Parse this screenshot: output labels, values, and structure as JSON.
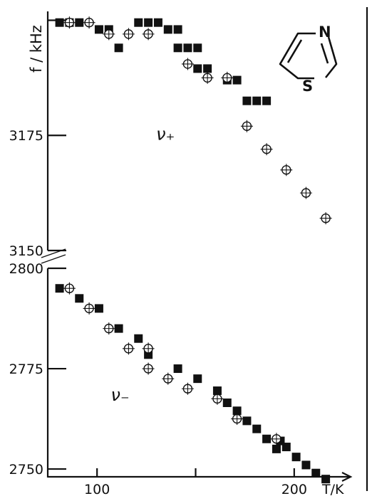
{
  "chart_data": {
    "type": "scatter",
    "ylabel": "f / kHz",
    "xlabel": "T/K",
    "x_ticks": [
      100,
      200
    ],
    "xlim": [
      75,
      225
    ],
    "y_upper": {
      "ylim": [
        3150,
        3201
      ],
      "ticks": [
        3150,
        3175,
        3200
      ],
      "tick_labels": [
        "3150",
        "3175",
        ""
      ]
    },
    "y_lower": {
      "ylim": [
        2747,
        2800
      ],
      "ticks": [
        2750,
        2775,
        2800
      ],
      "tick_labels": [
        "2750",
        "2775",
        "2800"
      ]
    },
    "axis_break": true,
    "molecule_labels": {
      "n": "N",
      "s": "S"
    },
    "annotations": [
      {
        "text": "ν₊",
        "x": 130,
        "y": 3174,
        "panel": "upper"
      },
      {
        "text": "ν₋",
        "x": 107,
        "y": 2767,
        "panel": "lower"
      }
    ],
    "series": [
      {
        "branch": "ν+",
        "marker": "filled-square",
        "points": [
          [
            81,
            3199.5
          ],
          [
            86,
            3199.5
          ],
          [
            91,
            3199.5
          ],
          [
            101,
            3198
          ],
          [
            106,
            3198
          ],
          [
            111,
            3194
          ],
          [
            121,
            3199.5
          ],
          [
            126,
            3199.5
          ],
          [
            131,
            3199.5
          ],
          [
            136,
            3198
          ],
          [
            141,
            3198
          ],
          [
            141,
            3194
          ],
          [
            146,
            3194
          ],
          [
            151,
            3194
          ],
          [
            151,
            3189.5
          ],
          [
            156,
            3189.5
          ],
          [
            166,
            3187
          ],
          [
            171,
            3187
          ],
          [
            176,
            3182.5
          ],
          [
            181,
            3182.5
          ],
          [
            186,
            3182.5
          ]
        ]
      },
      {
        "branch": "ν+",
        "marker": "open-crossed-circle",
        "points": [
          [
            86,
            3199.5
          ],
          [
            96,
            3199.5
          ],
          [
            106,
            3197
          ],
          [
            116,
            3197
          ],
          [
            126,
            3197
          ],
          [
            146,
            3190.5
          ],
          [
            156,
            3187.5
          ],
          [
            166,
            3187.5
          ],
          [
            176,
            3177
          ],
          [
            186,
            3172
          ],
          [
            196,
            3167.5
          ],
          [
            206,
            3162.5
          ],
          [
            216,
            3157
          ]
        ]
      },
      {
        "branch": "ν−",
        "marker": "filled-square",
        "points": [
          [
            81,
            2795
          ],
          [
            91,
            2792.5
          ],
          [
            101,
            2790
          ],
          [
            111,
            2785
          ],
          [
            121,
            2782.5
          ],
          [
            126,
            2778.5
          ],
          [
            141,
            2775
          ],
          [
            151,
            2772.5
          ],
          [
            161,
            2769.5
          ],
          [
            166,
            2766.5
          ],
          [
            171,
            2764.5
          ],
          [
            176,
            2762
          ],
          [
            181,
            2760
          ],
          [
            186,
            2757.5
          ],
          [
            191,
            2755
          ],
          [
            193,
            2757
          ],
          [
            196,
            2755.5
          ],
          [
            201,
            2753
          ],
          [
            206,
            2751
          ],
          [
            211,
            2749
          ],
          [
            216,
            2747.5
          ]
        ]
      },
      {
        "branch": "ν−",
        "marker": "open-crossed-circle",
        "points": [
          [
            86,
            2795
          ],
          [
            96,
            2790
          ],
          [
            106,
            2785
          ],
          [
            116,
            2780
          ],
          [
            126,
            2780
          ],
          [
            126,
            2775
          ],
          [
            136,
            2772.5
          ],
          [
            146,
            2770
          ],
          [
            161,
            2767.5
          ],
          [
            171,
            2762.5
          ],
          [
            191,
            2757.5
          ]
        ]
      }
    ]
  }
}
